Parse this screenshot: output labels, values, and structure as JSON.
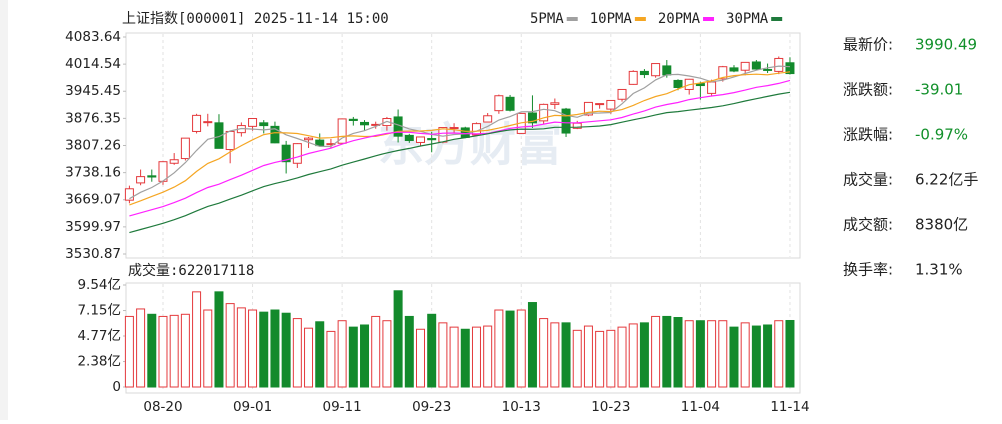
{
  "chart_data": [
    {
      "type": "candlestick",
      "title": "上证指数[000001]  2025-11-14 15:00",
      "watermark": "东方财富",
      "up_color": "#e4393c",
      "down_color": "#138a2c",
      "ylim": [
        3530.87,
        4083.64
      ],
      "yticks": [
        4083.64,
        4014.54,
        3945.45,
        3876.35,
        3807.26,
        3738.16,
        3669.07,
        3599.97,
        3530.87
      ],
      "grid": true,
      "open": [
        3668,
        3712,
        3730,
        3716,
        3762,
        3774,
        3843,
        3867,
        3865,
        3797,
        3840,
        3856,
        3865,
        3856,
        3808,
        3762,
        3822,
        3821,
        3810,
        3813,
        3874,
        3866,
        3861,
        3858,
        3880,
        3833,
        3815,
        3825,
        3816,
        3852,
        3852,
        3834,
        3867,
        3896,
        3930,
        3838,
        3890,
        3870,
        3912,
        3900,
        3851,
        3885,
        3912,
        3900,
        3925,
        3963,
        3996,
        3985,
        4010,
        3973,
        3950,
        3965,
        3940,
        3977,
        4005,
        3999,
        4020,
        4001,
        3996,
        4018
      ],
      "high": [
        3705,
        3746,
        3746,
        3767,
        3788,
        3826,
        3888,
        3888,
        3887,
        3845,
        3866,
        3876,
        3872,
        3868,
        3819,
        3813,
        3829,
        3838,
        3824,
        3875,
        3880,
        3872,
        3868,
        3880,
        3899,
        3837,
        3830,
        3842,
        3853,
        3864,
        3855,
        3866,
        3890,
        3937,
        3936,
        3890,
        3935,
        3914,
        3927,
        3903,
        3870,
        3918,
        3914,
        3923,
        3951,
        3999,
        4002,
        4016,
        4025,
        3976,
        3977,
        3970,
        3975,
        4010,
        4012,
        4019,
        4025,
        4016,
        4034,
        4032
      ],
      "low": [
        3660,
        3706,
        3715,
        3707,
        3758,
        3769,
        3838,
        3856,
        3800,
        3762,
        3830,
        3845,
        3838,
        3813,
        3736,
        3750,
        3801,
        3805,
        3800,
        3812,
        3858,
        3845,
        3850,
        3845,
        3815,
        3814,
        3806,
        3790,
        3813,
        3839,
        3826,
        3834,
        3866,
        3888,
        3894,
        3837,
        3852,
        3862,
        3900,
        3829,
        3849,
        3882,
        3901,
        3888,
        3919,
        3962,
        3979,
        3980,
        3980,
        3948,
        3937,
        3924,
        3932,
        3970,
        3994,
        3986,
        4000,
        3992,
        3989,
        3988
      ],
      "close": [
        3697,
        3728,
        3727,
        3766,
        3771,
        3826,
        3884,
        3868,
        3800,
        3843,
        3858,
        3876,
        3858,
        3814,
        3766,
        3812,
        3826,
        3807,
        3812,
        3875,
        3871,
        3860,
        3861,
        3876,
        3831,
        3820,
        3829,
        3822,
        3853,
        3853,
        3828,
        3863,
        3883,
        3934,
        3897,
        3889,
        3865,
        3912,
        3916,
        3839,
        3864,
        3917,
        3914,
        3922,
        3950,
        3996,
        3988,
        4016,
        3987,
        3955,
        3976,
        3960,
        3969,
        4008,
        3997,
        4019,
        4002,
        4000,
        4029,
        3990.49
      ],
      "series": [
        {
          "name": "5PMA",
          "color": "#a0a0a0",
          "values": [
            3671.8,
            3688,
            3700.2,
            3716.8,
            3737.8,
            3763.6,
            3794.8,
            3823,
            3829.8,
            3844.2,
            3850.6,
            3849,
            3847,
            3849.8,
            3834.4,
            3825.2,
            3815.2,
            3805,
            3804.6,
            3826.4,
            3838.2,
            3845,
            3855.8,
            3868.6,
            3859.8,
            3849.6,
            3843.4,
            3835.6,
            3831,
            3835.4,
            3837,
            3843.8,
            3856,
            3872.2,
            3881,
            3893.2,
            3893.6,
            3899.4,
            3895.8,
            3884.2,
            3879.2,
            3889.6,
            3890,
            3891.2,
            3913.4,
            3939.8,
            3954,
            3974.4,
            3987.4,
            3988.4,
            3984.4,
            3978.8,
            3969.4,
            3973.6,
            3982,
            3990.6,
            3999,
            4005.2,
            4009.4,
            4008
          ]
        },
        {
          "name": "10PMA",
          "color": "#f5a623",
          "values": [
            3655.9,
            3666.5,
            3677.6,
            3688.4,
            3701.4,
            3717.7,
            3741.4,
            3761.6,
            3773.3,
            3791,
            3807.1,
            3821.9,
            3835,
            3839.8,
            3839.3,
            3837.9,
            3832.1,
            3826,
            3827.2,
            3830.4,
            3831.7,
            3830.1,
            3830.4,
            3836.6,
            3843.1,
            3843.9,
            3844.2,
            3845.7,
            3849.8,
            3847.6,
            3843.3,
            3843.6,
            3845.8,
            3851.6,
            3858.2,
            3865.1,
            3868.7,
            3877.7,
            3884,
            3882.6,
            3886.2,
            3891.6,
            3894.7,
            3893.5,
            3898.8,
            3909.5,
            3921.8,
            3932.2,
            3939.3,
            3950.9,
            3962.1,
            3966.4,
            3971.9,
            3980.5,
            3985.2,
            3987.5,
            3988.9,
            3987.3,
            3991.5,
            3995
          ]
        },
        {
          "name": "20PMA",
          "color": "#ff22ff",
          "values": [
            3628,
            3635.8,
            3643.8,
            3651.7,
            3661.7,
            3672.9,
            3687.2,
            3700.3,
            3708.7,
            3720.5,
            3731.5,
            3744.2,
            3756.3,
            3764.1,
            3770.4,
            3777.8,
            3786.8,
            3793.8,
            3800.3,
            3810.7,
            3819.4,
            3826,
            3832.7,
            3838.2,
            3841.2,
            3840.9,
            3838.2,
            3835.9,
            3838.5,
            3839,
            3837.5,
            3836.9,
            3838.1,
            3844.1,
            3850.7,
            3854.5,
            3856.5,
            3861.7,
            3866.9,
            3865.1,
            3864.8,
            3867.6,
            3870.3,
            3872.6,
            3878.5,
            3887.3,
            3895.3,
            3905,
            3911.7,
            3916.8,
            3924.2,
            3929,
            3933.3,
            3937,
            3942,
            3948.5,
            3955.4,
            3959.8,
            3965.4,
            3973
          ]
        },
        {
          "name": "30PMA",
          "color": "#1f7a3c",
          "values": [
            3585.3,
            3593.2,
            3601.1,
            3609,
            3618.3,
            3628.4,
            3640.6,
            3652,
            3660.2,
            3670.7,
            3680.7,
            3691.8,
            3702.5,
            3710.3,
            3717.1,
            3724.7,
            3733.3,
            3740.6,
            3747.6,
            3757.2,
            3764.9,
            3772.8,
            3781,
            3788.3,
            3794.6,
            3799.8,
            3805.9,
            3811.1,
            3816.8,
            3823,
            3827.4,
            3831.9,
            3837.1,
            3842.7,
            3846.9,
            3849,
            3848.4,
            3849.8,
            3853.7,
            3853.5,
            3853.8,
            3855.1,
            3857,
            3860.6,
            3866.7,
            3872.8,
            3878.3,
            3885.2,
            3891.1,
            3893.7,
            3897.2,
            3900.5,
            3904.1,
            3908.5,
            3914.1,
            3920.7,
            3926.5,
            3932.4,
            3938.3,
            3942.9
          ]
        }
      ]
    },
    {
      "type": "bar",
      "title": "成交量:622017118",
      "categories": [
        null,
        null,
        null,
        "08-20",
        null,
        null,
        null,
        null,
        null,
        null,
        null,
        "09-01",
        null,
        null,
        null,
        null,
        null,
        null,
        null,
        "09-11",
        null,
        null,
        null,
        null,
        null,
        null,
        null,
        "09-23",
        null,
        null,
        null,
        null,
        null,
        null,
        null,
        "10-13",
        null,
        null,
        null,
        null,
        null,
        null,
        null,
        "10-23",
        null,
        null,
        null,
        null,
        null,
        null,
        null,
        "11-04",
        null,
        null,
        null,
        null,
        null,
        null,
        null,
        "11-14"
      ],
      "values": [
        6.6,
        7.3,
        6.8,
        6.6,
        6.7,
        6.8,
        8.9,
        7.2,
        8.9,
        7.8,
        7.4,
        7.2,
        7.0,
        7.2,
        6.9,
        6.4,
        5.5,
        6.1,
        5.2,
        6.2,
        5.6,
        5.8,
        6.6,
        6.2,
        9.0,
        6.6,
        5.4,
        6.8,
        6.0,
        5.6,
        5.4,
        5.6,
        5.7,
        7.2,
        7.1,
        7.2,
        7.9,
        6.4,
        6.0,
        6.0,
        5.3,
        5.7,
        5.2,
        5.3,
        5.6,
        5.9,
        6.0,
        6.6,
        6.6,
        6.5,
        6.2,
        6.2,
        6.2,
        6.2,
        5.6,
        6.0,
        5.7,
        5.8,
        6.2,
        6.22
      ],
      "ylim": [
        0,
        9.54
      ],
      "yticks": [
        {
          "value": 9.54,
          "label": "9.54亿"
        },
        {
          "value": 7.15,
          "label": "7.15亿"
        },
        {
          "value": 4.77,
          "label": "4.77亿"
        },
        {
          "value": 2.38,
          "label": "2.38亿"
        },
        0
      ]
    }
  ],
  "quote": {
    "rows": [
      {
        "label": "最新价:",
        "value": "3990.49",
        "color": "#11902a"
      },
      {
        "label": "涨跌额:",
        "value": "-39.01",
        "color": "#11902a"
      },
      {
        "label": "涨跌幅:",
        "value": "-0.97%",
        "color": "#11902a"
      },
      {
        "label": "成交量:",
        "value": "6.22亿手",
        "color": "#222222"
      },
      {
        "label": "成交额:",
        "value": "8380亿",
        "color": "#222222"
      },
      {
        "label": "换手率:",
        "value": "1.31%",
        "color": "#222222"
      }
    ]
  }
}
